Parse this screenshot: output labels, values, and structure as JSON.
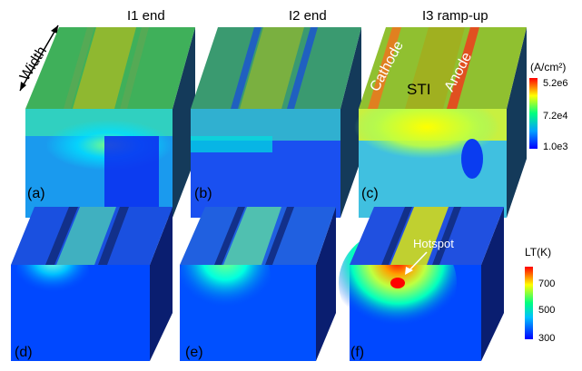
{
  "columns": [
    {
      "heading": "I1 end"
    },
    {
      "heading": "I2 end"
    },
    {
      "heading": "I3 ramp-up"
    }
  ],
  "panels": [
    {
      "label": "(a)",
      "kind": "current",
      "level": 0.35
    },
    {
      "label": "(b)",
      "kind": "current",
      "level": 0.25
    },
    {
      "label": "(c)",
      "kind": "current",
      "level": 0.85
    },
    {
      "label": "(d)",
      "kind": "temperature",
      "level": 0.15
    },
    {
      "label": "(e)",
      "kind": "temperature",
      "level": 0.3
    },
    {
      "label": "(f)",
      "kind": "temperature",
      "level": 0.75
    }
  ],
  "annotations": {
    "width": "Width",
    "cathode": "Cathode",
    "anode": "Anode",
    "sti": "STI",
    "hotspot": "Hotspot"
  },
  "current_scale": {
    "title": "(A/cm²)",
    "ticks": [
      "5.2e6",
      "7.2e4",
      "1.0e3"
    ]
  },
  "temperature_scale": {
    "title": "LT(K)",
    "ticks": [
      "700",
      "500",
      "300"
    ]
  },
  "colors": {
    "jet": [
      "#00007f",
      "#0000ff",
      "#007fff",
      "#00ffff",
      "#7fff7f",
      "#ffff00",
      "#ff7f00",
      "#ff0000",
      "#7f0000"
    ],
    "side_face": "#1a3a6e",
    "edge": "#0b1a40"
  }
}
